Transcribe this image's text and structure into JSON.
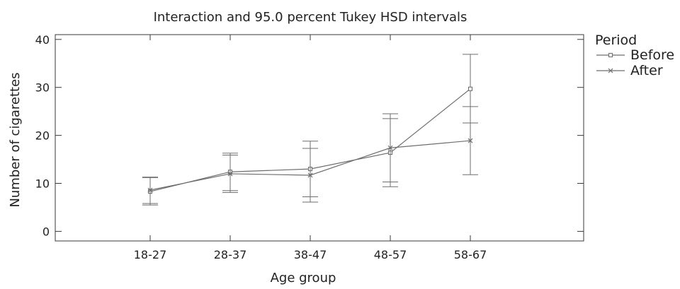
{
  "chart_data": {
    "type": "line",
    "title": "Interaction and 95.0 percent Tukey HSD intervals",
    "xlabel": "Age group",
    "ylabel": "Number of cigarettes",
    "categories": [
      "18-27",
      "28-37",
      "38-47",
      "48-57",
      "58-67"
    ],
    "ylim": [
      -2,
      41
    ],
    "yticks": [
      0,
      10,
      20,
      30,
      40
    ],
    "grid": false,
    "legend": {
      "title": "Period",
      "position": "right"
    },
    "series": [
      {
        "name": "Before",
        "marker": "square",
        "color": "#6e6e6e",
        "values": [
          8.3,
          12.4,
          13.0,
          16.4,
          29.7
        ],
        "lower": [
          5.5,
          8.5,
          7.2,
          9.3,
          22.6
        ],
        "upper": [
          11.2,
          16.3,
          18.8,
          23.5,
          36.9
        ]
      },
      {
        "name": "After",
        "marker": "x",
        "color": "#6e6e6e",
        "values": [
          8.6,
          12.0,
          11.7,
          17.4,
          18.9
        ],
        "lower": [
          5.8,
          8.1,
          6.1,
          10.3,
          11.8
        ],
        "upper": [
          11.3,
          15.9,
          17.3,
          24.5,
          26.0
        ]
      }
    ]
  }
}
